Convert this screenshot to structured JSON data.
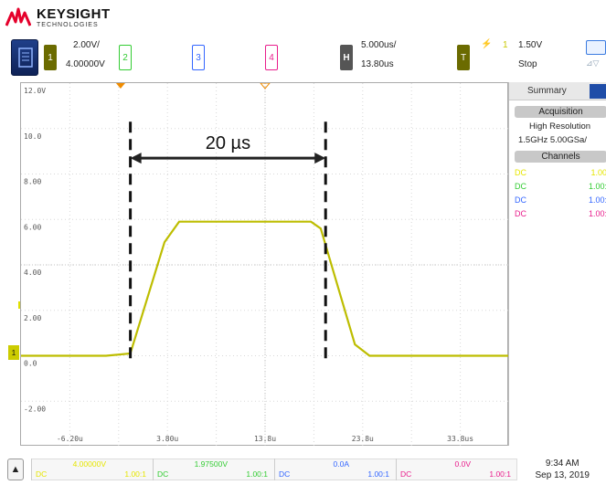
{
  "brand": {
    "name": "KEYSIGHT",
    "sub": "TECHNOLOGIES",
    "color": "#e5002b"
  },
  "channels": [
    {
      "num": "1",
      "scale": "2.00V/",
      "offset": "4.00000V",
      "color": "#cccc00",
      "active": true
    },
    {
      "num": "2",
      "color": "#33cc33"
    },
    {
      "num": "3",
      "color": "#3366ff"
    },
    {
      "num": "4",
      "color": "#e91e8c"
    }
  ],
  "horizontal": {
    "label": "H",
    "scale": "5.000us/",
    "position": "13.80us"
  },
  "trigger": {
    "label": "T",
    "source": "1",
    "level": "1.50V",
    "state": "Stop"
  },
  "plot": {
    "y_labels": [
      "12.0V",
      "10.0",
      "8.00",
      "6.00",
      "4.00",
      "2.00",
      "0.0",
      "-2.00"
    ],
    "x_labels": [
      "-6.20u",
      "3.80u",
      "13.8u",
      "23.8u",
      "33.8us"
    ],
    "annotation": "20 µs",
    "ground_marker": "1",
    "trace_color": "#bdbd00"
  },
  "chart_data": {
    "type": "line",
    "xlabel": "",
    "ylabel": "",
    "xlim": [
      -11.2,
      38.8
    ],
    "ylim": [
      -4,
      12
    ],
    "x_unit": "us",
    "y_unit": "V",
    "series": [
      {
        "x": [
          -11.2,
          -2.5,
          0.0,
          3.5,
          5.0,
          10.0,
          15.0,
          18.5,
          19.5,
          23.0,
          24.5,
          30.0,
          38.8
        ],
        "y": [
          0.0,
          0.0,
          0.1,
          5.0,
          5.9,
          5.9,
          5.9,
          5.9,
          5.6,
          0.5,
          0.0,
          0.0,
          0.0
        ]
      }
    ]
  },
  "summary": {
    "tab_label": "Summary",
    "acquisition_header": "Acquisition",
    "mode": "High Resolution",
    "rate": "1.5GHz  5.00GSa/",
    "channels_header": "Channels",
    "rows": [
      {
        "coupling": "DC",
        "ratio": "1.00",
        "color": "#e6e600"
      },
      {
        "coupling": "DC",
        "ratio": "1.00:",
        "color": "#33cc33"
      },
      {
        "coupling": "DC",
        "ratio": "1.00:",
        "color": "#3366ff"
      },
      {
        "coupling": "DC",
        "ratio": "1.00:",
        "color": "#e91e8c"
      }
    ]
  },
  "bottom": {
    "cells": [
      {
        "value": "4.00000V",
        "coupling": "DC",
        "ratio": "1.00:1",
        "color": "#e6e600"
      },
      {
        "value": "1.97500V",
        "coupling": "DC",
        "ratio": "1.00:1",
        "color": "#33cc33"
      },
      {
        "value": "0.0A",
        "coupling": "DC",
        "ratio": "1.00:1",
        "color": "#3366ff"
      },
      {
        "value": "0.0V",
        "coupling": "DC",
        "ratio": "1.00:1",
        "color": "#e91e8c"
      }
    ],
    "time": "9:34 AM",
    "date": "Sep 13, 2019"
  }
}
